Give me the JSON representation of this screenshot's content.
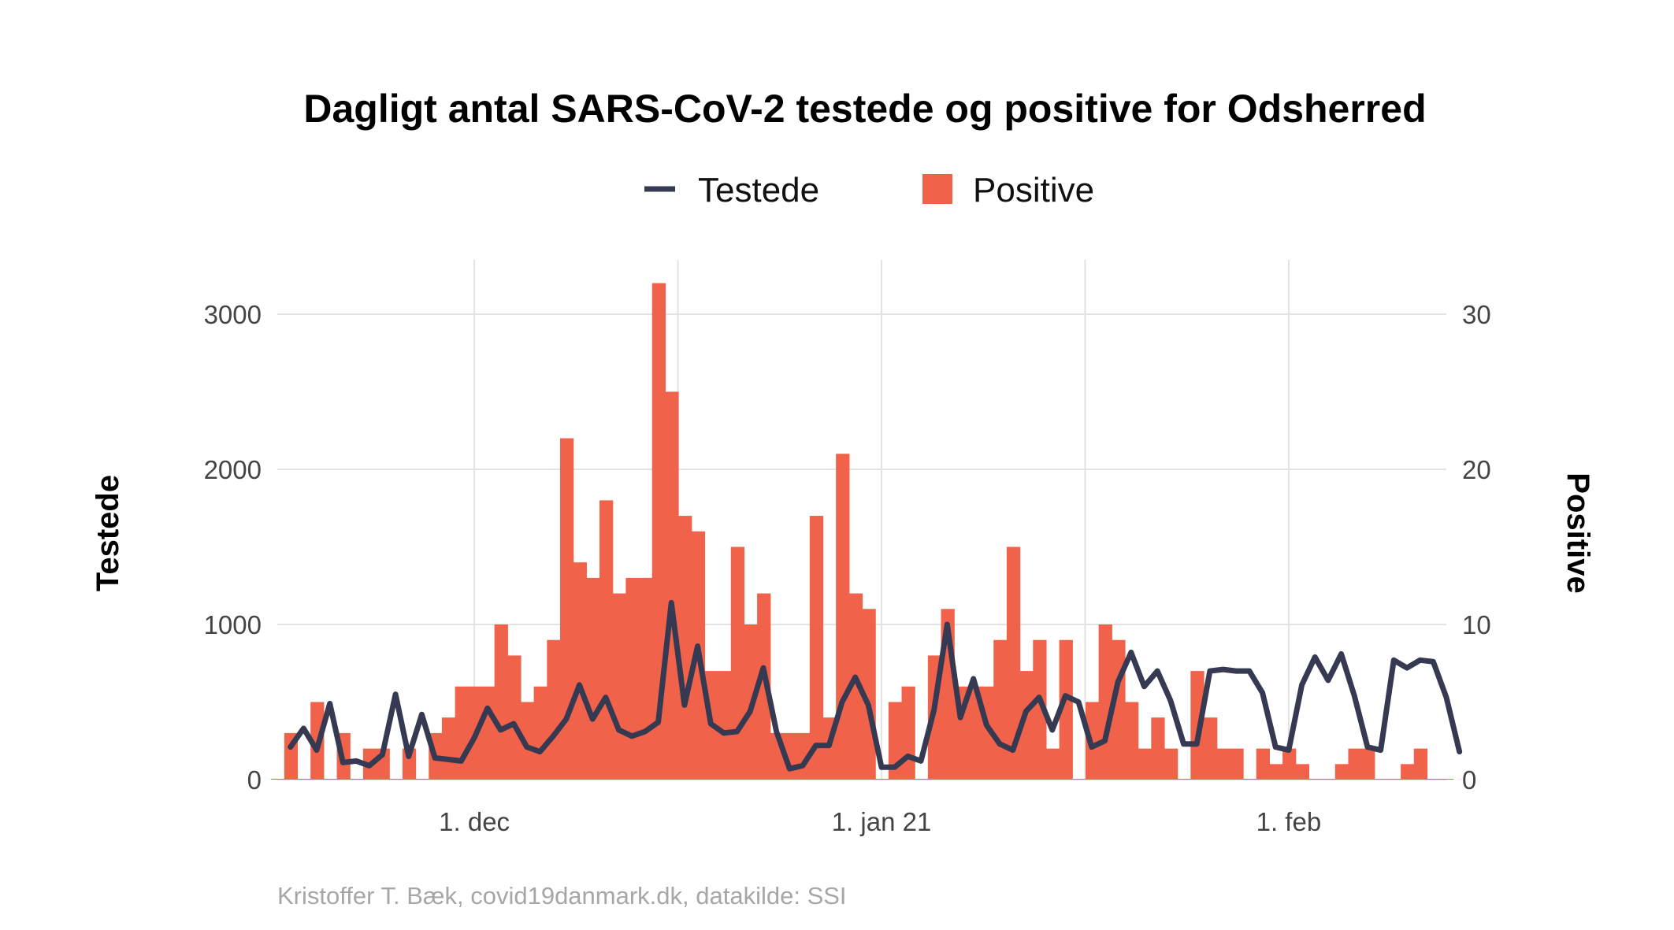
{
  "chart_data": {
    "type": "bar",
    "title": "Dagligt antal SARS-CoV-2 testede og positive for Odsherred",
    "caption": "Kristoffer T. Bæk, covid19danmark.dk, datakilde: SSI",
    "legend_placement": "top",
    "grid": true,
    "y_left": {
      "label": "Testede",
      "lim": [
        0,
        3350
      ],
      "ticks": [
        0,
        1000,
        2000,
        3000
      ],
      "tick_labels": [
        "0",
        "1000",
        "2000",
        "3000"
      ]
    },
    "y_right": {
      "label": "Positive",
      "lim": [
        0,
        33.5
      ],
      "ticks": [
        0,
        10,
        20,
        30
      ],
      "tick_labels": [
        "0",
        "10",
        "20",
        "30"
      ]
    },
    "x": {
      "start": "2020-11-16",
      "end": "2021-02-13",
      "ticks": [
        {
          "date": "2020-12-01",
          "label": "1. dec"
        },
        {
          "date": "2021-01-01",
          "label": "1. jan 21"
        },
        {
          "date": "2021-02-01",
          "label": "1. feb"
        }
      ]
    },
    "colors": {
      "positive": "#f0624a",
      "testede": "#353a52"
    },
    "series": [
      {
        "name": "Positive",
        "type": "bar",
        "axis": "right",
        "start": "2020-11-16",
        "values": [
          0,
          3,
          0,
          5,
          0,
          3,
          0,
          2,
          2,
          0,
          2,
          0,
          3,
          4,
          6,
          6,
          6,
          10,
          8,
          5,
          6,
          9,
          22,
          14,
          13,
          18,
          12,
          13,
          13,
          32,
          25,
          17,
          16,
          7,
          7,
          15,
          10,
          12,
          3,
          3,
          3,
          17,
          4,
          21,
          12,
          11,
          0,
          5,
          6,
          0,
          8,
          11,
          6,
          6,
          6,
          9,
          15,
          7,
          9,
          2,
          9,
          0,
          5,
          10,
          9,
          5,
          2,
          4,
          2,
          0,
          7,
          4,
          2,
          2,
          0,
          2,
          1,
          2,
          1,
          0,
          0,
          1,
          2,
          2,
          0,
          0,
          1,
          2,
          0,
          0
        ]
      },
      {
        "name": "Testede",
        "type": "line",
        "axis": "left",
        "start": "2020-11-17",
        "values": [
          210,
          330,
          190,
          490,
          110,
          120,
          90,
          160,
          550,
          150,
          420,
          140,
          130,
          120,
          270,
          460,
          320,
          360,
          210,
          180,
          280,
          390,
          610,
          390,
          530,
          320,
          280,
          310,
          370,
          1140,
          480,
          860,
          360,
          300,
          310,
          440,
          720,
          310,
          70,
          90,
          220,
          220,
          500,
          660,
          480,
          80,
          80,
          150,
          120,
          450,
          1000,
          400,
          650,
          350,
          230,
          190,
          440,
          530,
          320,
          540,
          500,
          210,
          250,
          630,
          820,
          600,
          700,
          510,
          230,
          230,
          700,
          710,
          700,
          700,
          560,
          210,
          190,
          610,
          790,
          640,
          810,
          540,
          210,
          190,
          770,
          720,
          770,
          760,
          530,
          180
        ]
      }
    ]
  }
}
